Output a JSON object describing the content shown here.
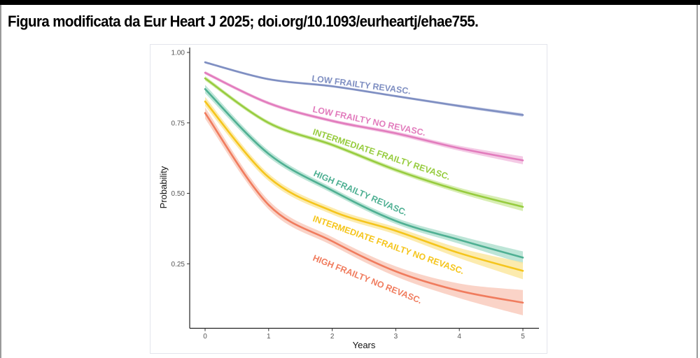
{
  "caption": "Figura modificata da Eur Heart J 2025; doi.org/10.1093/eurheartj/ehae755.",
  "chart_data": {
    "type": "line",
    "title": "",
    "xlabel": "Years",
    "ylabel": "Probability",
    "xlim": [
      0,
      5
    ],
    "ylim": [
      0,
      1
    ],
    "x_ticks": [
      "0",
      "1",
      "2",
      "3",
      "4",
      "5"
    ],
    "y_ticks": [
      "0.25",
      "0.50",
      "0.75",
      "1.00"
    ],
    "grid": false,
    "legend": "direct-labels",
    "x": [
      0,
      1,
      2,
      3,
      4,
      5
    ],
    "series": [
      {
        "name": "LOW FRAILTY REVASC.",
        "color": "#7f8fc2",
        "band": "#c5cde6",
        "values": [
          0.965,
          0.905,
          0.88,
          0.845,
          0.81,
          0.778
        ],
        "ci": [
          0.004,
          0.004,
          0.004,
          0.004,
          0.005,
          0.006
        ]
      },
      {
        "name": "LOW FRAILTY NO REVASC.",
        "color": "#e27cbd",
        "band": "#f2c1e1",
        "values": [
          0.928,
          0.82,
          0.757,
          0.713,
          0.66,
          0.617
        ],
        "ci": [
          0.006,
          0.006,
          0.006,
          0.007,
          0.009,
          0.014
        ]
      },
      {
        "name": "INTERMEDIATE FRAILTY REVASC.",
        "color": "#97cc3f",
        "band": "#d1eba6",
        "values": [
          0.908,
          0.75,
          0.672,
          0.583,
          0.51,
          0.452
        ],
        "ci": [
          0.008,
          0.007,
          0.007,
          0.008,
          0.01,
          0.015
        ]
      },
      {
        "name": "HIGH FRAILTY REVASC.",
        "color": "#4fb093",
        "band": "#b2e0d0",
        "values": [
          0.87,
          0.64,
          0.51,
          0.402,
          0.335,
          0.272
        ],
        "ci": [
          0.015,
          0.012,
          0.01,
          0.011,
          0.014,
          0.022
        ]
      },
      {
        "name": "INTERMEDIATE FRAILTY NO REVASC.",
        "color": "#f5c51c",
        "band": "#fbe7a0",
        "values": [
          0.826,
          0.557,
          0.437,
          0.367,
          0.288,
          0.225
        ],
        "ci": [
          0.016,
          0.013,
          0.012,
          0.013,
          0.018,
          0.03
        ]
      },
      {
        "name": "HIGH FRAILTY NO REVASC.",
        "color": "#f07c5e",
        "band": "#f9cbbd",
        "values": [
          0.785,
          0.459,
          0.33,
          0.223,
          0.154,
          0.112
        ],
        "ci": [
          0.02,
          0.016,
          0.015,
          0.018,
          0.026,
          0.045
        ]
      }
    ]
  }
}
